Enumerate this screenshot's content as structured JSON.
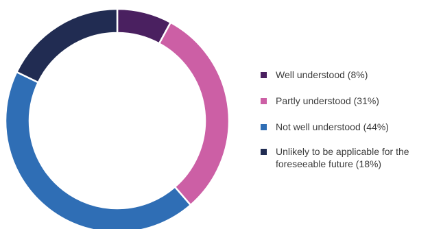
{
  "chart_data": {
    "type": "pie",
    "variant": "donut",
    "categories": [
      "Well understood (8%)",
      "Partly understood (31%)",
      "Not well understood (44%)",
      "Unlikely to be applicable for the foreseeable future (18%)"
    ],
    "values": [
      8,
      31,
      44,
      18
    ],
    "colors": [
      "#4a2060",
      "#cc5fa5",
      "#2f6eb5",
      "#212c52"
    ],
    "legend_position": "right"
  }
}
